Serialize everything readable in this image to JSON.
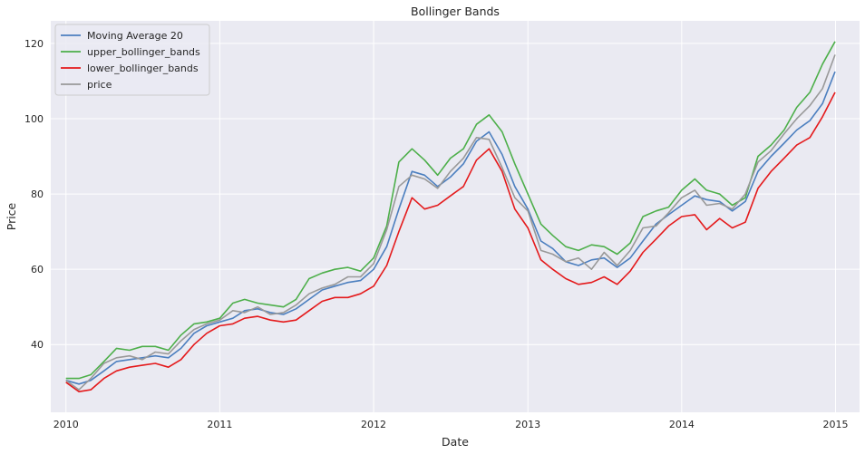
{
  "chart_data": {
    "type": "line",
    "title": "Bollinger Bands",
    "xlabel": "Date",
    "ylabel": "Price",
    "x_ticks": [
      "2010",
      "2011",
      "2012",
      "2013",
      "2014",
      "2015"
    ],
    "y_ticks": [
      40,
      60,
      80,
      100,
      120
    ],
    "xlim": [
      "2009-11-26",
      "2015-02-27"
    ],
    "ylim": [
      22,
      126
    ],
    "grid": true,
    "legend_position": "top-left",
    "colors": {
      "background": "#eaeaf2",
      "grid": "#ffffff",
      "moving_average": "#4c7fbf",
      "upper": "#4daf4a",
      "lower": "#e41a1c",
      "price": "#999999"
    },
    "x": [
      "2010-01-01",
      "2010-02-01",
      "2010-03-01",
      "2010-04-01",
      "2010-05-01",
      "2010-06-01",
      "2010-07-01",
      "2010-08-01",
      "2010-09-01",
      "2010-10-01",
      "2010-11-01",
      "2010-12-01",
      "2011-01-01",
      "2011-02-01",
      "2011-03-01",
      "2011-04-01",
      "2011-05-01",
      "2011-06-01",
      "2011-07-01",
      "2011-08-01",
      "2011-09-01",
      "2011-10-01",
      "2011-11-01",
      "2011-12-01",
      "2012-01-01",
      "2012-02-01",
      "2012-03-01",
      "2012-04-01",
      "2012-05-01",
      "2012-06-01",
      "2012-07-01",
      "2012-08-01",
      "2012-09-01",
      "2012-10-01",
      "2012-11-01",
      "2012-12-01",
      "2013-01-01",
      "2013-02-01",
      "2013-03-01",
      "2013-04-01",
      "2013-05-01",
      "2013-06-01",
      "2013-07-01",
      "2013-08-01",
      "2013-09-01",
      "2013-10-01",
      "2013-11-01",
      "2013-12-01",
      "2014-01-01",
      "2014-02-01",
      "2014-03-01",
      "2014-04-01",
      "2014-05-01",
      "2014-06-01",
      "2014-07-01",
      "2014-08-01",
      "2014-09-01",
      "2014-10-01",
      "2014-11-01",
      "2014-12-01",
      "2014-12-31"
    ],
    "series": [
      {
        "name": "Moving Average 20",
        "values": [
          30.5,
          29.5,
          30.5,
          33.0,
          35.5,
          36.0,
          36.5,
          37.0,
          36.5,
          39.0,
          43.0,
          45.0,
          46.0,
          47.0,
          49.0,
          49.5,
          48.5,
          48.0,
          49.5,
          52.0,
          54.5,
          55.5,
          56.5,
          57.0,
          60.0,
          66.0,
          76.0,
          86.0,
          85.0,
          82.0,
          84.5,
          88.0,
          94.0,
          96.5,
          90.5,
          82.0,
          76.0,
          67.5,
          65.5,
          62.0,
          61.0,
          62.5,
          63.0,
          60.5,
          63.0,
          67.5,
          72.0,
          74.5,
          77.0,
          79.5,
          78.5,
          78.0,
          75.5,
          78.0,
          86.0,
          90.0,
          93.5,
          97.0,
          99.5,
          104.0,
          112.5
        ]
      },
      {
        "name": "upper_bollinger_bands",
        "values": [
          31.0,
          31.0,
          32.0,
          35.5,
          39.0,
          38.5,
          39.5,
          39.5,
          38.5,
          42.5,
          45.5,
          46.0,
          47.0,
          51.0,
          52.0,
          51.0,
          50.5,
          50.0,
          52.0,
          57.5,
          59.0,
          60.0,
          60.5,
          59.5,
          63.0,
          71.5,
          88.5,
          92.0,
          89.0,
          85.0,
          89.5,
          92.0,
          98.5,
          101.0,
          96.5,
          88.0,
          80.0,
          72.0,
          69.0,
          66.0,
          65.0,
          66.5,
          66.0,
          64.0,
          67.0,
          74.0,
          75.5,
          76.5,
          81.0,
          84.0,
          81.0,
          80.0,
          77.0,
          79.0,
          90.0,
          93.0,
          97.0,
          103.0,
          107.0,
          114.5,
          120.5
        ]
      },
      {
        "name": "lower_bollinger_bands",
        "values": [
          30.0,
          27.5,
          28.0,
          31.0,
          33.0,
          34.0,
          34.5,
          35.0,
          34.0,
          36.0,
          40.0,
          43.0,
          45.0,
          45.5,
          47.0,
          47.5,
          46.5,
          46.0,
          46.5,
          49.0,
          51.5,
          52.5,
          52.5,
          53.5,
          55.5,
          61.0,
          70.0,
          79.0,
          76.0,
          77.0,
          79.5,
          82.0,
          89.0,
          92.0,
          86.0,
          76.0,
          71.0,
          62.5,
          60.0,
          57.5,
          56.0,
          56.5,
          58.0,
          56.0,
          59.5,
          64.5,
          68.0,
          71.5,
          74.0,
          74.5,
          70.5,
          73.5,
          71.0,
          72.5,
          81.5,
          86.0,
          89.5,
          93.0,
          95.0,
          100.5,
          107.0
        ]
      },
      {
        "name": "price",
        "values": [
          30.5,
          28.0,
          31.0,
          35.0,
          36.5,
          37.0,
          36.0,
          38.0,
          37.5,
          41.0,
          44.0,
          45.5,
          46.5,
          49.0,
          48.5,
          50.0,
          48.0,
          48.5,
          50.5,
          53.5,
          55.0,
          56.0,
          58.0,
          58.0,
          61.5,
          70.5,
          82.0,
          85.0,
          84.0,
          81.5,
          86.0,
          89.5,
          95.0,
          94.5,
          87.0,
          79.0,
          75.5,
          65.0,
          64.0,
          62.0,
          63.0,
          60.0,
          64.5,
          61.0,
          65.0,
          71.0,
          71.5,
          75.0,
          79.0,
          81.0,
          77.0,
          77.5,
          76.0,
          80.0,
          88.5,
          91.5,
          96.0,
          100.0,
          103.5,
          108.0,
          117.0
        ]
      }
    ]
  }
}
